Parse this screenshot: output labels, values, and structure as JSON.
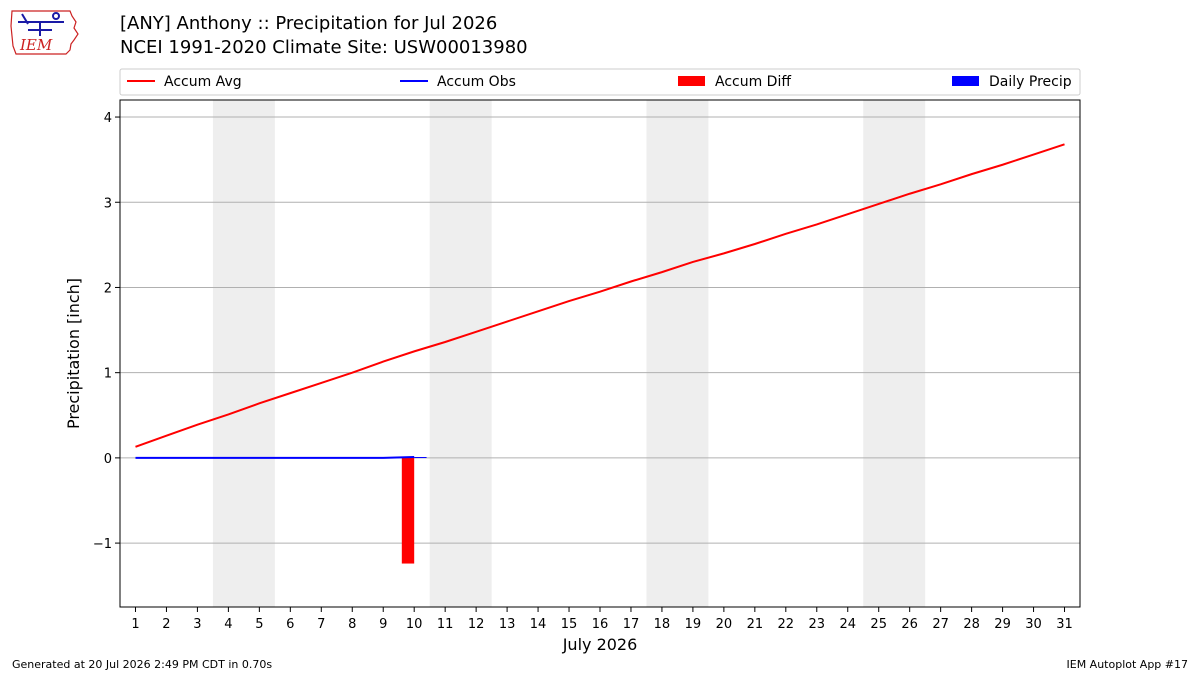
{
  "header": {
    "title_line1": "[ANY] Anthony :: Precipitation for Jul 2026",
    "title_line2": "NCEI 1991-2020 Climate Site: USW00013980",
    "logo_text": "IEM"
  },
  "footer": {
    "generated": "Generated at 20 Jul 2026 2:49 PM CDT in 0.70s",
    "app": "IEM Autoplot App #17"
  },
  "colors": {
    "accum_avg": "#ff0000",
    "accum_obs": "#0000ff",
    "accum_diff": "#ff0000",
    "daily_precip": "#0000ff",
    "weekend_shade": "#eeeeee",
    "grid": "#b0b0b0",
    "logo_red": "#cc2222",
    "logo_blue": "#1a1aa6"
  },
  "chart_data": {
    "type": "line",
    "xlabel": "July 2026",
    "ylabel": "Precipitation [inch]",
    "x": [
      1,
      2,
      3,
      4,
      5,
      6,
      7,
      8,
      9,
      10,
      11,
      12,
      13,
      14,
      15,
      16,
      17,
      18,
      19,
      20,
      21,
      22,
      23,
      24,
      25,
      26,
      27,
      28,
      29,
      30,
      31
    ],
    "xlim": [
      0.5,
      31.5
    ],
    "ylim": [
      -1.75,
      4.2
    ],
    "yticks": [
      -1,
      0,
      1,
      2,
      3,
      4
    ],
    "ytick_labels": [
      "−1",
      "0",
      "1",
      "2",
      "3",
      "4"
    ],
    "grid": "horizontal",
    "legend_position": "top",
    "weekend_shading": [
      [
        3.5,
        5.5
      ],
      [
        10.5,
        12.5
      ],
      [
        17.5,
        19.5
      ],
      [
        24.5,
        26.5
      ]
    ],
    "series": [
      {
        "name": "Accum Avg",
        "kind": "line",
        "x": [
          1,
          2,
          3,
          4,
          5,
          6,
          7,
          8,
          9,
          10,
          11,
          12,
          13,
          14,
          15,
          16,
          17,
          18,
          19,
          20,
          21,
          22,
          23,
          24,
          25,
          26,
          27,
          28,
          29,
          30,
          31
        ],
        "values": [
          0.13,
          0.26,
          0.39,
          0.51,
          0.64,
          0.76,
          0.88,
          1.0,
          1.13,
          1.25,
          1.36,
          1.48,
          1.6,
          1.72,
          1.84,
          1.95,
          2.07,
          2.18,
          2.3,
          2.4,
          2.51,
          2.63,
          2.74,
          2.86,
          2.98,
          3.1,
          3.21,
          3.33,
          3.44,
          3.56,
          3.68
        ]
      },
      {
        "name": "Accum Obs",
        "kind": "line",
        "x": [
          1,
          2,
          3,
          4,
          5,
          6,
          7,
          8,
          9,
          10
        ],
        "values": [
          0,
          0,
          0,
          0,
          0,
          0,
          0,
          0,
          0,
          0.01
        ]
      },
      {
        "name": "Accum Diff",
        "kind": "bar",
        "x": [
          10
        ],
        "values": [
          -1.24
        ]
      },
      {
        "name": "Daily Precip",
        "kind": "bar",
        "x": [
          10
        ],
        "values": [
          0.01
        ]
      }
    ]
  }
}
